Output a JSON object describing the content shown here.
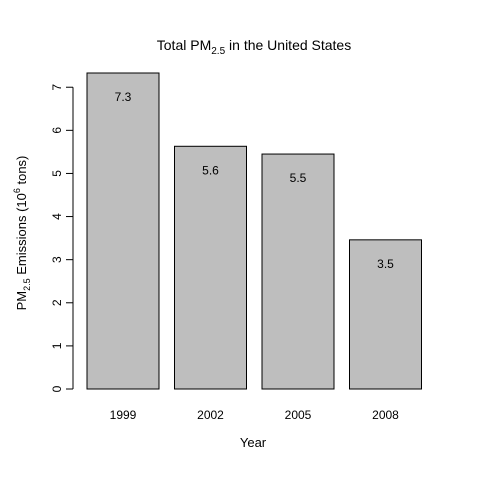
{
  "chart_data": {
    "type": "bar",
    "title": {
      "prefix": "Total PM",
      "subscript": "2.5",
      "suffix": " in the United States"
    },
    "xlabel": "Year",
    "ylabel": {
      "prefix": "PM",
      "subscript": "2.5",
      "middle": " Emissions (10",
      "superscript": "6",
      "suffix": " tons)"
    },
    "categories": [
      "1999",
      "2002",
      "2005",
      "2008"
    ],
    "values": [
      7.33,
      5.63,
      5.45,
      3.46
    ],
    "data_labels": [
      "7.3",
      "5.6",
      "5.5",
      "3.5"
    ],
    "ylim": [
      0,
      7.33
    ],
    "yticks": [
      0,
      1,
      2,
      3,
      4,
      5,
      6,
      7
    ],
    "bar_color": "#bebebe",
    "grid": false,
    "legend": "none"
  }
}
